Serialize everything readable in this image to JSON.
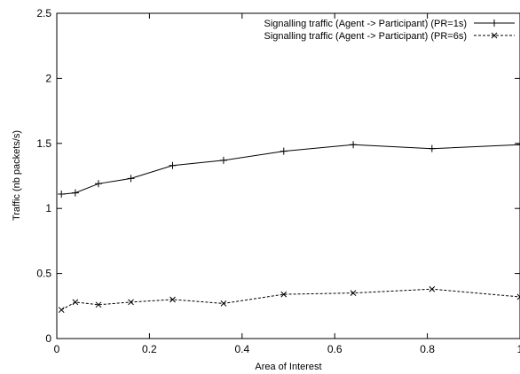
{
  "chart_data": {
    "type": "line",
    "xlabel": "Area of Interest",
    "ylabel": "Traffic (nb packets/s)",
    "xlim": [
      0,
      1
    ],
    "ylim": [
      0,
      2.5
    ],
    "x_ticks": [
      "0",
      "0.2",
      "0.4",
      "0.6",
      "0.8",
      "1"
    ],
    "y_ticks": [
      "0",
      "0.5",
      "1",
      "1.5",
      "2",
      "2.5"
    ],
    "grid": false,
    "legend_position": "top-right",
    "series": [
      {
        "name": "Signalling traffic (Agent -> Participant) (PR=1s)",
        "marker": "plus",
        "line_style": "solid",
        "x": [
          0.01,
          0.04,
          0.09,
          0.16,
          0.25,
          0.36,
          0.49,
          0.64,
          0.81,
          1.0
        ],
        "y": [
          1.11,
          1.12,
          1.19,
          1.23,
          1.33,
          1.37,
          1.44,
          1.49,
          1.46,
          1.49
        ]
      },
      {
        "name": "Signalling traffic (Agent -> Participant) (PR=6s)",
        "marker": "x",
        "line_style": "dashed",
        "x": [
          0.01,
          0.04,
          0.09,
          0.16,
          0.25,
          0.36,
          0.49,
          0.64,
          0.81,
          1.0
        ],
        "y": [
          0.22,
          0.28,
          0.26,
          0.28,
          0.3,
          0.27,
          0.34,
          0.35,
          0.38,
          0.32
        ]
      }
    ]
  }
}
